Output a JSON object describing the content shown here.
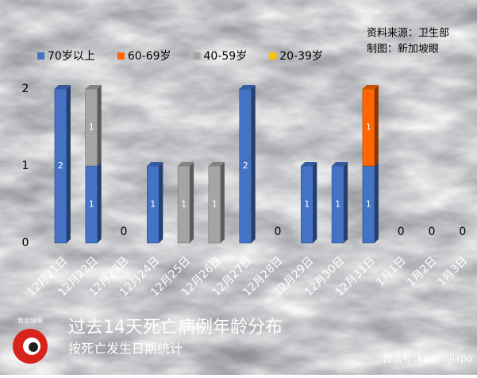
{
  "chart_data": {
    "type": "stacked-bar-3d",
    "title": "过去14天死亡病例年龄分布",
    "subtitle": "按死亡发生日期统计",
    "source": "资料来源：卫生部",
    "credit": "制图：新加坡眼",
    "logo_text": "新加坡眼",
    "watermark": "微信号: kanxinjiapo",
    "categories": [
      "12月21日",
      "12月22日",
      "12月23日",
      "12月24日",
      "12月25日",
      "12月26日",
      "12月27日",
      "12月28日",
      "12月29日",
      "12月30日",
      "12月31日",
      "1月1日",
      "1月2日",
      "1月3日"
    ],
    "series": [
      {
        "name": "70岁以上",
        "color": "#4472c4",
        "values": [
          2,
          1,
          0,
          1,
          0,
          0,
          2,
          0,
          1,
          1,
          1,
          0,
          0,
          0
        ]
      },
      {
        "name": "60-69岁",
        "color": "#ff6600",
        "values": [
          0,
          0,
          0,
          0,
          0,
          0,
          0,
          0,
          0,
          0,
          1,
          0,
          0,
          0
        ]
      },
      {
        "name": "40-59岁",
        "color": "#a5a5a5",
        "values": [
          0,
          1,
          0,
          0,
          1,
          1,
          0,
          0,
          0,
          0,
          0,
          0,
          0,
          0
        ]
      },
      {
        "name": "20-39岁",
        "color": "#ffc000",
        "values": [
          0,
          0,
          0,
          0,
          0,
          0,
          0,
          0,
          0,
          0,
          0,
          0,
          0,
          0
        ]
      }
    ],
    "ylim": [
      0,
      2
    ],
    "yticks": [
      0,
      1,
      2
    ],
    "grid": false,
    "legend": "top-left"
  }
}
